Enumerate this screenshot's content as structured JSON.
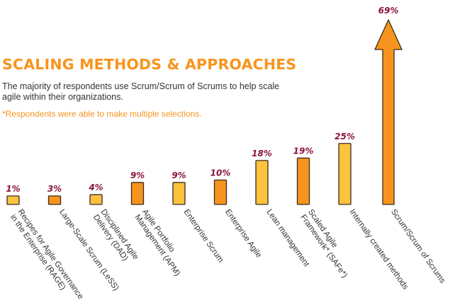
{
  "header": {
    "title": "SCALING METHODS & APPROACHES",
    "subtitle": "The majority of respondents use Scrum/Scrum of Scrums to help scale agile within their organizations.",
    "note": "*Respondents were able to make multiple selections."
  },
  "colors": {
    "title": "#f7941d",
    "bar_dark": "#f7941d",
    "bar_light": "#fdc23e",
    "bar_outline": "#3a2a1f",
    "value_label": "#8b1538",
    "text": "#333333"
  },
  "chart_data": {
    "type": "bar",
    "title": "SCALING METHODS & APPROACHES",
    "categories": [
      [
        "Recipes for Agile Governance",
        "in the Enterprise (RAGE)"
      ],
      [
        "Large-Scale Scrum (LeSS)"
      ],
      [
        "Disciplined Agile",
        "Delivery (DAD)"
      ],
      [
        "Agile Portfolio",
        "Management (APM)"
      ],
      [
        "Enterprise Scrum"
      ],
      [
        "Enterprise Agile"
      ],
      [
        "Lean management"
      ],
      [
        "Scaled Agile",
        "Framework* (SAFe*)"
      ],
      [
        "Internally created methods"
      ],
      [
        "Scrum/Scrum of Scrums"
      ]
    ],
    "values": [
      1,
      3,
      4,
      9,
      9,
      10,
      18,
      19,
      25,
      69
    ],
    "value_labels": [
      "1%",
      "3%",
      "4%",
      "9%",
      "9%",
      "10%",
      "18%",
      "19%",
      "25%",
      "69%"
    ],
    "bar_colors": [
      "light",
      "dark",
      "light",
      "dark",
      "light",
      "dark",
      "light",
      "dark",
      "light",
      "dark"
    ],
    "unit": "%",
    "last_bar_style": "arrow",
    "grid": false,
    "legend": "none"
  }
}
